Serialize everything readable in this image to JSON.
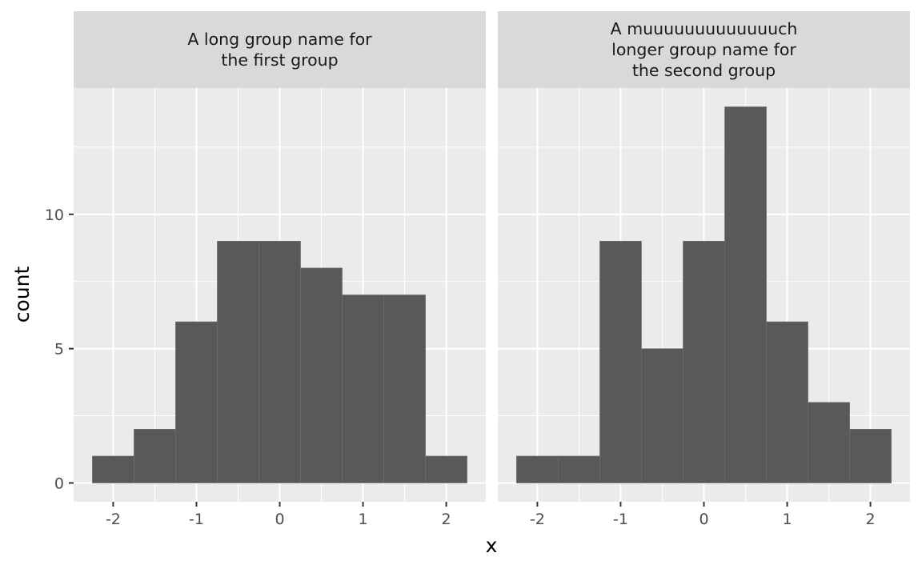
{
  "chart_data": {
    "type": "bar",
    "subtype": "histogram-faceted",
    "xlabel": "x",
    "ylabel": "count",
    "xlim": [
      -2.475,
      2.475
    ],
    "ylim": [
      -0.7,
      14.7
    ],
    "x_ticks": [
      -2,
      -1,
      0,
      1,
      2
    ],
    "x_tick_labels": [
      "-2",
      "-1",
      "0",
      "1",
      "2"
    ],
    "y_ticks": [
      0,
      5,
      10
    ],
    "y_tick_labels": [
      "0",
      "5",
      "10"
    ],
    "grid": true,
    "bin_width": 0.5,
    "bins": [
      {
        "start": -2.25,
        "end": -1.75
      },
      {
        "start": -1.75,
        "end": -1.25
      },
      {
        "start": -1.25,
        "end": -0.75
      },
      {
        "start": -0.75,
        "end": -0.25
      },
      {
        "start": -0.25,
        "end": 0.25
      },
      {
        "start": 0.25,
        "end": 0.75
      },
      {
        "start": 0.75,
        "end": 1.25
      },
      {
        "start": 1.25,
        "end": 1.75
      },
      {
        "start": 1.75,
        "end": 2.25
      }
    ],
    "facets": [
      {
        "label_lines": [
          "A long group name for",
          "the first group"
        ],
        "values": [
          1,
          2,
          6,
          9,
          9,
          8,
          7,
          7,
          1
        ]
      },
      {
        "label_lines": [
          "A muuuuuuuuuuuuuch",
          "longer group name for",
          "the second group"
        ],
        "values": [
          1,
          1,
          9,
          5,
          9,
          14,
          6,
          3,
          2
        ]
      }
    ],
    "colors": {
      "bar_fill": "#595959",
      "panel_background": "#ebebeb",
      "strip_background": "#d9d9d9",
      "grid": "#ffffff"
    }
  }
}
